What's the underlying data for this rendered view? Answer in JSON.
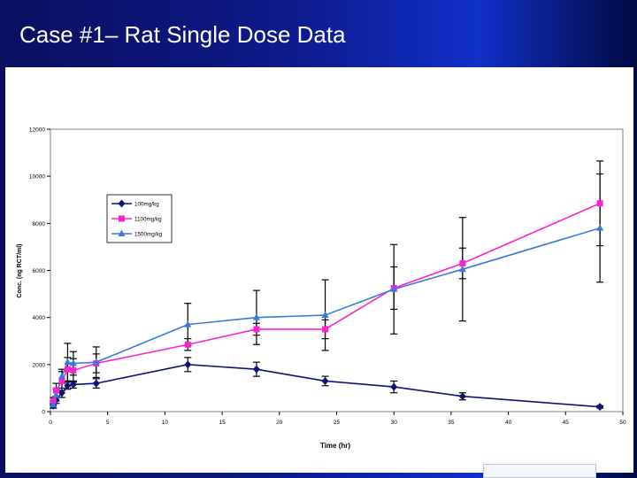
{
  "slide": {
    "title": "Case #1– Rat Single Dose Data"
  },
  "chart_data": {
    "type": "line",
    "title": "",
    "xlabel": "Time (hr)",
    "ylabel": "Conc. (ng RCT/ml)",
    "xlim": [
      0,
      50
    ],
    "ylim": [
      0,
      12000
    ],
    "x_ticks": [
      0,
      5,
      10,
      15,
      20,
      25,
      30,
      35,
      40,
      45,
      50
    ],
    "y_ticks": [
      0,
      2000,
      4000,
      6000,
      8000,
      10000,
      12000
    ],
    "grid": false,
    "legend_position": "upper-left",
    "series": [
      {
        "name": "100mg/kg",
        "color": "#0b1470",
        "marker": "diamond",
        "x": [
          0.25,
          0.5,
          1,
          1.5,
          2,
          4,
          12,
          18,
          24,
          30,
          36,
          48
        ],
        "y": [
          250,
          500,
          800,
          1100,
          1150,
          1200,
          2000,
          1800,
          1300,
          1050,
          650,
          200
        ],
        "err": [
          100,
          150,
          200,
          150,
          150,
          200,
          300,
          300,
          200,
          250,
          150,
          50
        ]
      },
      {
        "name": "1100mg/kg",
        "color": "#ff22cc",
        "marker": "square",
        "x": [
          0.25,
          0.5,
          1,
          1.5,
          2,
          4,
          12,
          18,
          24,
          30,
          36,
          48
        ],
        "y": [
          450,
          900,
          1300,
          1800,
          1750,
          2050,
          2850,
          3500,
          3500,
          5250,
          6300,
          8850
        ],
        "err": [
          150,
          300,
          400,
          500,
          500,
          400,
          250,
          250,
          400,
          900,
          650,
          1800
        ]
      },
      {
        "name": "1500mg/kg",
        "color": "#3a78e0",
        "marker": "triangle",
        "x": [
          0.25,
          0.5,
          1,
          1.5,
          2,
          4,
          12,
          18,
          24,
          30,
          36,
          48
        ],
        "y": [
          300,
          700,
          1500,
          2100,
          2050,
          2100,
          3700,
          4000,
          4100,
          5200,
          6050,
          7800
        ],
        "err": [
          150,
          250,
          300,
          800,
          500,
          650,
          900,
          1150,
          1500,
          1900,
          2200,
          2300
        ]
      }
    ]
  }
}
